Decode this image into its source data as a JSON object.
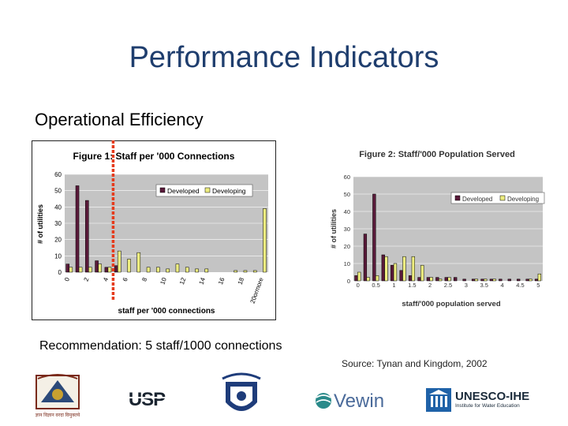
{
  "slide": {
    "title": "Performance Indicators",
    "subtitle": "Operational Efficiency",
    "recommendation": "Recommendation: 5 staff/1000 connections",
    "source": "Source: Tynan and Kingdom, 2002"
  },
  "colors": {
    "title": "#1f3e6e",
    "developed": "#5a1a3a",
    "developing": "#eeee80",
    "plot_bg": "#c4c4c4",
    "marker": "#e53b1c"
  },
  "logos": {
    "logo1_caption": "ज्ञान विज्ञान वरदा विमुक्तये",
    "usp": "USP",
    "vewin": "Vewin",
    "unesco": "UNESCO-IHE",
    "unesco_sub1": "Institute for Water Education",
    "unesco_sub2": ""
  },
  "chart_data": [
    {
      "type": "bar",
      "title": "Figure 1: Staff per '000 Connections",
      "xlabel": "staff per '000 connections",
      "ylabel": "# of utilities",
      "ylim": [
        0,
        60
      ],
      "yticks": [
        0,
        10,
        20,
        30,
        40,
        50,
        60
      ],
      "categories": [
        "0",
        "1",
        "2",
        "3",
        "4",
        "5",
        "6",
        "7",
        "8",
        "9",
        "10",
        "11",
        "12",
        "13",
        "14",
        "15",
        "16",
        "17",
        "18",
        "19",
        "20ormore"
      ],
      "tick_labels": [
        "0",
        "2",
        "4",
        "6",
        "8",
        "10",
        "12",
        "14",
        "16",
        "18",
        "20ormore"
      ],
      "series": [
        {
          "name": "Developed",
          "values": [
            5,
            53,
            44,
            7,
            3,
            4,
            0,
            0,
            0,
            0,
            0,
            0,
            0,
            0,
            0,
            0,
            0,
            0,
            0,
            0,
            0
          ]
        },
        {
          "name": "Developing",
          "values": [
            3,
            3,
            3,
            5,
            3,
            13,
            8,
            12,
            3,
            3,
            2,
            5,
            3,
            2,
            2,
            0,
            0,
            1,
            1,
            1,
            39
          ]
        }
      ],
      "legend": "top-right",
      "grid": true,
      "marker_line_at": 5
    },
    {
      "type": "bar",
      "title": "Figure 2: Staff/'000 Population Served",
      "xlabel": "staff/'000 population served",
      "ylabel": "# of utilities",
      "ylim": [
        0,
        60
      ],
      "yticks": [
        0,
        10,
        20,
        30,
        40,
        50,
        60
      ],
      "categories": [
        "0",
        "0.25",
        "0.5",
        "0.75",
        "1",
        "1.25",
        "1.5",
        "1.75",
        "2",
        "2.25",
        "2.5",
        "2.75",
        "3",
        "3.25",
        "3.5",
        "3.75",
        "4",
        "4.25",
        "4.5",
        "4.75",
        "5"
      ],
      "tick_labels": [
        "0",
        "0.5",
        "1",
        "1.5",
        "2",
        "2.5",
        "3",
        "3.5",
        "4",
        "4.5",
        "5"
      ],
      "series": [
        {
          "name": "Developed",
          "values": [
            3,
            27,
            50,
            15,
            9,
            6,
            3,
            2,
            2,
            2,
            2,
            2,
            1,
            1,
            1,
            1,
            1,
            1,
            1,
            1,
            1
          ]
        },
        {
          "name": "Developing",
          "values": [
            5,
            2,
            3,
            14,
            10,
            14,
            14,
            9,
            2,
            1,
            2,
            0,
            0,
            1,
            1,
            1,
            0,
            0,
            0,
            1,
            4
          ]
        }
      ],
      "legend": "top-right",
      "grid": true
    }
  ]
}
